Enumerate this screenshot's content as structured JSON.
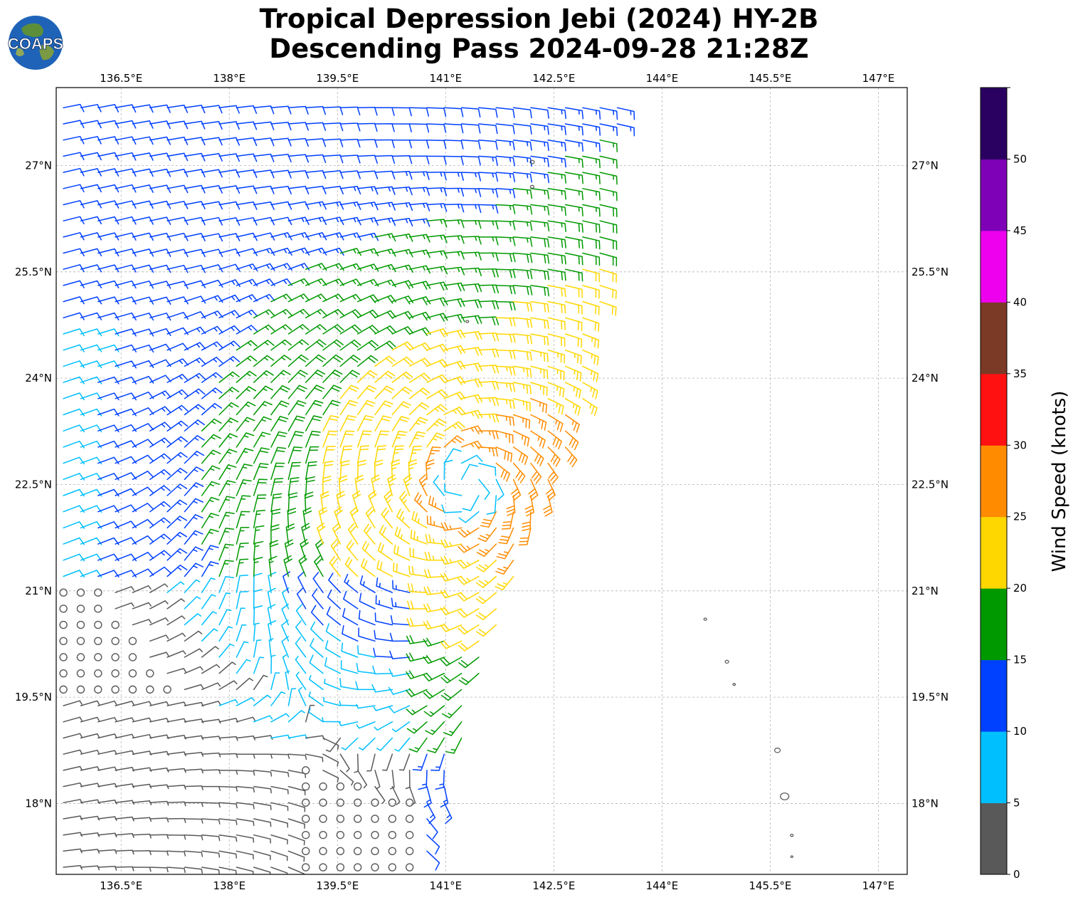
{
  "title": {
    "line1": "Tropical Depression Jebi (2024) HY-2B",
    "line2": "Descending Pass 2024-09-28 21:28Z"
  },
  "logo": {
    "text": "COAPS",
    "icon": "globe-icon"
  },
  "map": {
    "lon_range": [
      135.6,
      147.4
    ],
    "lat_range": [
      17.0,
      28.1
    ],
    "lon_ticks": [
      "136.5°E",
      "138°E",
      "139.5°E",
      "141°E",
      "142.5°E",
      "144°E",
      "145.5°E",
      "147°E"
    ],
    "lat_ticks": [
      "27°N",
      "25.5°N",
      "24°N",
      "22.5°N",
      "21°N",
      "19.5°N",
      "18°N"
    ],
    "grid": true,
    "storm_center": {
      "lon": 141.3,
      "lat": 22.5
    },
    "swath_east_edge_lat_lon": [
      [
        27.8,
        143.4
      ],
      [
        25.5,
        143.2
      ],
      [
        24.0,
        143.0
      ],
      [
        22.5,
        142.5
      ],
      [
        21.0,
        141.9
      ],
      [
        19.5,
        141.4
      ],
      [
        18.0,
        141.0
      ],
      [
        17.0,
        140.7
      ]
    ]
  },
  "colorbar": {
    "title": "Wind Speed (knots)",
    "ticks": [
      "0",
      "5",
      "10",
      "15",
      "20",
      "25",
      "30",
      "35",
      "40",
      "45",
      "50"
    ],
    "colors": [
      "#595959",
      "#00bfff",
      "#0040ff",
      "#009900",
      "#ffd700",
      "#ff8c00",
      "#ff1111",
      "#7b3a25",
      "#ee00ee",
      "#7e00b7",
      "#2a0060"
    ]
  },
  "chart_data": {
    "type": "wind-barb-map",
    "wind_speed_bins_knots": [
      0,
      5,
      10,
      15,
      20,
      25,
      30,
      35,
      40,
      45,
      50,
      55
    ],
    "barb_groups_knots_by_region": {
      "southwest_calm": 3,
      "far_west_north": 10,
      "north_central": 12,
      "east_of_center": 22,
      "max_near_center": 28
    }
  }
}
